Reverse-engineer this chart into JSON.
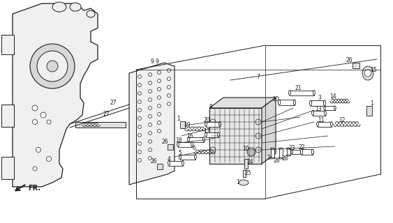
{
  "bg_color": "#ffffff",
  "line_color": "#1a1a1a",
  "fig_width": 5.63,
  "fig_height": 3.2,
  "dpi": 100,
  "fr_text": "FR.",
  "fr_fontsize": 7
}
